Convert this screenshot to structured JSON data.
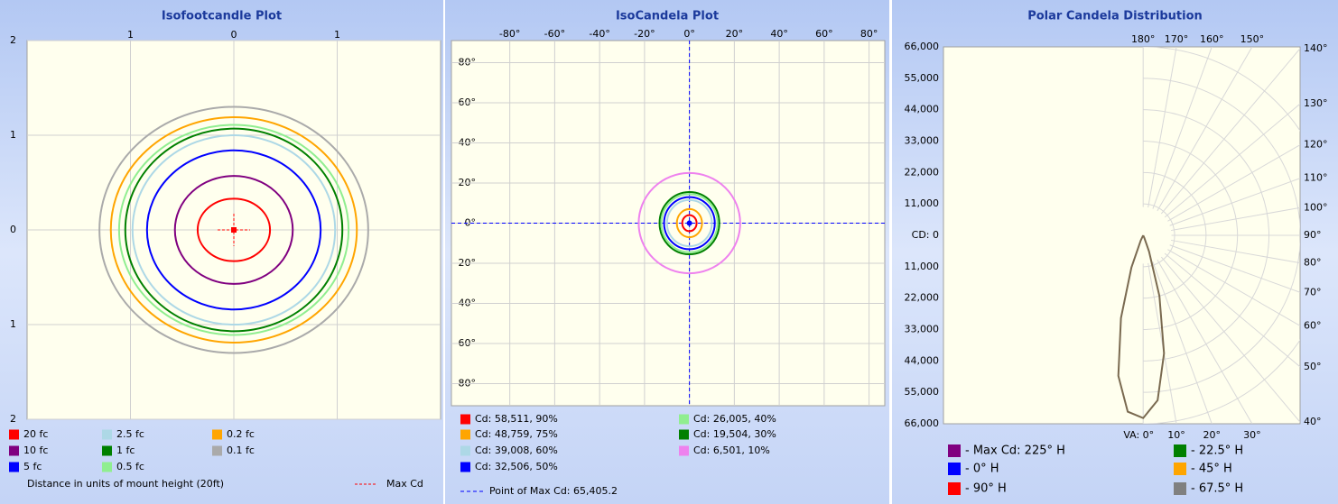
{
  "chart_data": [
    {
      "type": "isocontour",
      "title": "Isofootcandle Plot",
      "xlabel": "Distance in units of mount height (20ft)",
      "xlim": [
        -2,
        2
      ],
      "ylim": [
        -2,
        2
      ],
      "xticks": [
        {
          "value": -1,
          "label": "1"
        },
        0,
        1
      ],
      "yticks": [
        {
          "value": 2,
          "label": "2"
        },
        1,
        0,
        {
          "value": -1,
          "label": "1"
        },
        {
          "value": -2,
          "label": "2"
        }
      ],
      "grid": true,
      "series": [
        {
          "name": "20 fc",
          "color": "#ff0000",
          "values": [
            0.35,
            0.33
          ]
        },
        {
          "name": "10 fc",
          "color": "#800080",
          "values": [
            0.57,
            0.57
          ]
        },
        {
          "name": "5 fc",
          "color": "#0000ff",
          "values": [
            0.84,
            0.84
          ]
        },
        {
          "name": "2.5 fc",
          "color": "#add8e6",
          "values": [
            0.98,
            1.0
          ]
        },
        {
          "name": "1 fc",
          "color": "#008000",
          "values": [
            1.05,
            1.07
          ]
        },
        {
          "name": "0.5 fc",
          "color": "#90ee90",
          "values": [
            1.11,
            1.11
          ]
        },
        {
          "name": "0.2 fc",
          "color": "#ffa500",
          "values": [
            1.19,
            1.19
          ]
        },
        {
          "name": "0.1 fc",
          "color": "#aaaaaa",
          "values": [
            1.3,
            1.3
          ]
        }
      ],
      "max_marker": {
        "name": "Max Cd",
        "color": "#ff0000",
        "x": 0,
        "y": 0
      }
    },
    {
      "type": "isocontour",
      "title": "IsoCandela Plot",
      "xlim": [
        -106,
        87
      ],
      "ylim": [
        -91,
        91
      ],
      "xticks": [
        {
          "value": -80,
          "label": "-80°"
        },
        {
          "value": -60,
          "label": "-60°"
        },
        {
          "value": -40,
          "label": "-40°"
        },
        {
          "value": -20,
          "label": "-20°"
        },
        {
          "value": 0,
          "label": "0°"
        },
        {
          "value": 20,
          "label": "20°"
        },
        {
          "value": 40,
          "label": "40°"
        },
        {
          "value": 60,
          "label": "60°"
        },
        {
          "value": 80,
          "label": "80°"
        }
      ],
      "yticks": [
        {
          "value": 80,
          "label": "80°"
        },
        {
          "value": 60,
          "label": "60°"
        },
        {
          "value": 40,
          "label": "40°"
        },
        {
          "value": 20,
          "label": "20°"
        },
        {
          "value": 0,
          "label": "0°"
        },
        {
          "value": -20,
          "label": "-20°"
        },
        {
          "value": -40,
          "label": "-40°"
        },
        {
          "value": -60,
          "label": "-60°"
        },
        {
          "value": -80,
          "label": "-80°"
        }
      ],
      "grid": true,
      "series": [
        {
          "name": "Cd: 58,511, 90%",
          "color": "#ff0000",
          "values": [
            3.2,
            4
          ]
        },
        {
          "name": "Cd: 48,759, 75%",
          "color": "#ffa500",
          "values": [
            5.6,
            7
          ]
        },
        {
          "name": "Cd: 39,008, 60%",
          "color": "#add8e6",
          "values": [
            10,
            11.5
          ]
        },
        {
          "name": "Cd: 32,506, 50%",
          "color": "#0000ff",
          "values": [
            11.3,
            13
          ]
        },
        {
          "name": "Cd: 26,005, 40%",
          "color": "#90ee90",
          "values": [
            12.5,
            14.5
          ]
        },
        {
          "name": "Cd: 19,504, 30%",
          "color": "#008000",
          "values": [
            13.3,
            15.5
          ]
        },
        {
          "name": "Cd: 6,501, 10%",
          "color": "#ee82ee",
          "values": [
            22.6,
            25
          ]
        }
      ],
      "max_marker": {
        "name": "Point of Max Cd: 65,405.2",
        "color": "#0000ff",
        "x": 0,
        "y": 0
      }
    },
    {
      "type": "polar",
      "title": "Polar Candela Distribution",
      "ylim": [
        -66000,
        66000
      ],
      "yticks": [
        {
          "value": 66000,
          "label": "66,000"
        },
        {
          "value": 55000,
          "label": "55,000"
        },
        {
          "value": 44000,
          "label": "44,000"
        },
        {
          "value": 33000,
          "label": "33,000"
        },
        {
          "value": 22000,
          "label": "22,000"
        },
        {
          "value": 11000,
          "label": "11,000"
        },
        {
          "value": 0,
          "label": "CD: 0"
        },
        {
          "value": -11000,
          "label": "11,000"
        },
        {
          "value": -22000,
          "label": "22,000"
        },
        {
          "value": -33000,
          "label": "33,000"
        },
        {
          "value": -44000,
          "label": "44,000"
        },
        {
          "value": -55000,
          "label": "55,000"
        },
        {
          "value": -66000,
          "label": "66,000"
        }
      ],
      "angle_ticks": [
        {
          "value": 180,
          "label": "180°"
        },
        {
          "value": 170,
          "label": "170°"
        },
        {
          "value": 160,
          "label": "160°"
        },
        {
          "value": 150,
          "label": "150°"
        },
        {
          "value": 140,
          "label": "140°"
        },
        {
          "value": 130,
          "label": "130°"
        },
        {
          "value": 120,
          "label": "120°"
        },
        {
          "value": 110,
          "label": "110°"
        },
        {
          "value": 100,
          "label": "100°"
        },
        {
          "value": 90,
          "label": "90°"
        },
        {
          "value": 80,
          "label": "80°"
        },
        {
          "value": 70,
          "label": "70°"
        },
        {
          "value": 60,
          "label": "60°"
        },
        {
          "value": 50,
          "label": "50°"
        },
        {
          "value": 40,
          "label": "40°"
        },
        {
          "value": 30,
          "label": "30°"
        },
        {
          "value": 20,
          "label": "20°"
        },
        {
          "value": 10,
          "label": "10°"
        },
        {
          "value": 0,
          "label": "VA: 0°"
        }
      ],
      "x": [
        -30,
        -25,
        -20,
        -15,
        -10,
        -5,
        0,
        5,
        10,
        15,
        20,
        25,
        30
      ],
      "values": [
        0,
        2000,
        12000,
        30000,
        50000,
        62000,
        64000,
        58000,
        42000,
        22000,
        6000,
        1000,
        0
      ],
      "line_color": "#7a6a50",
      "legend": [
        {
          "name": "- Max Cd: 225° H",
          "color": "#800080"
        },
        {
          "name": "- 0° H",
          "color": "#0000ff"
        },
        {
          "name": "- 90° H",
          "color": "#ff0000"
        },
        {
          "name": "- 22.5° H",
          "color": "#008000"
        },
        {
          "name": "- 45° H",
          "color": "#ffa500"
        },
        {
          "name": "- 67.5° H",
          "color": "#808080"
        }
      ]
    }
  ]
}
